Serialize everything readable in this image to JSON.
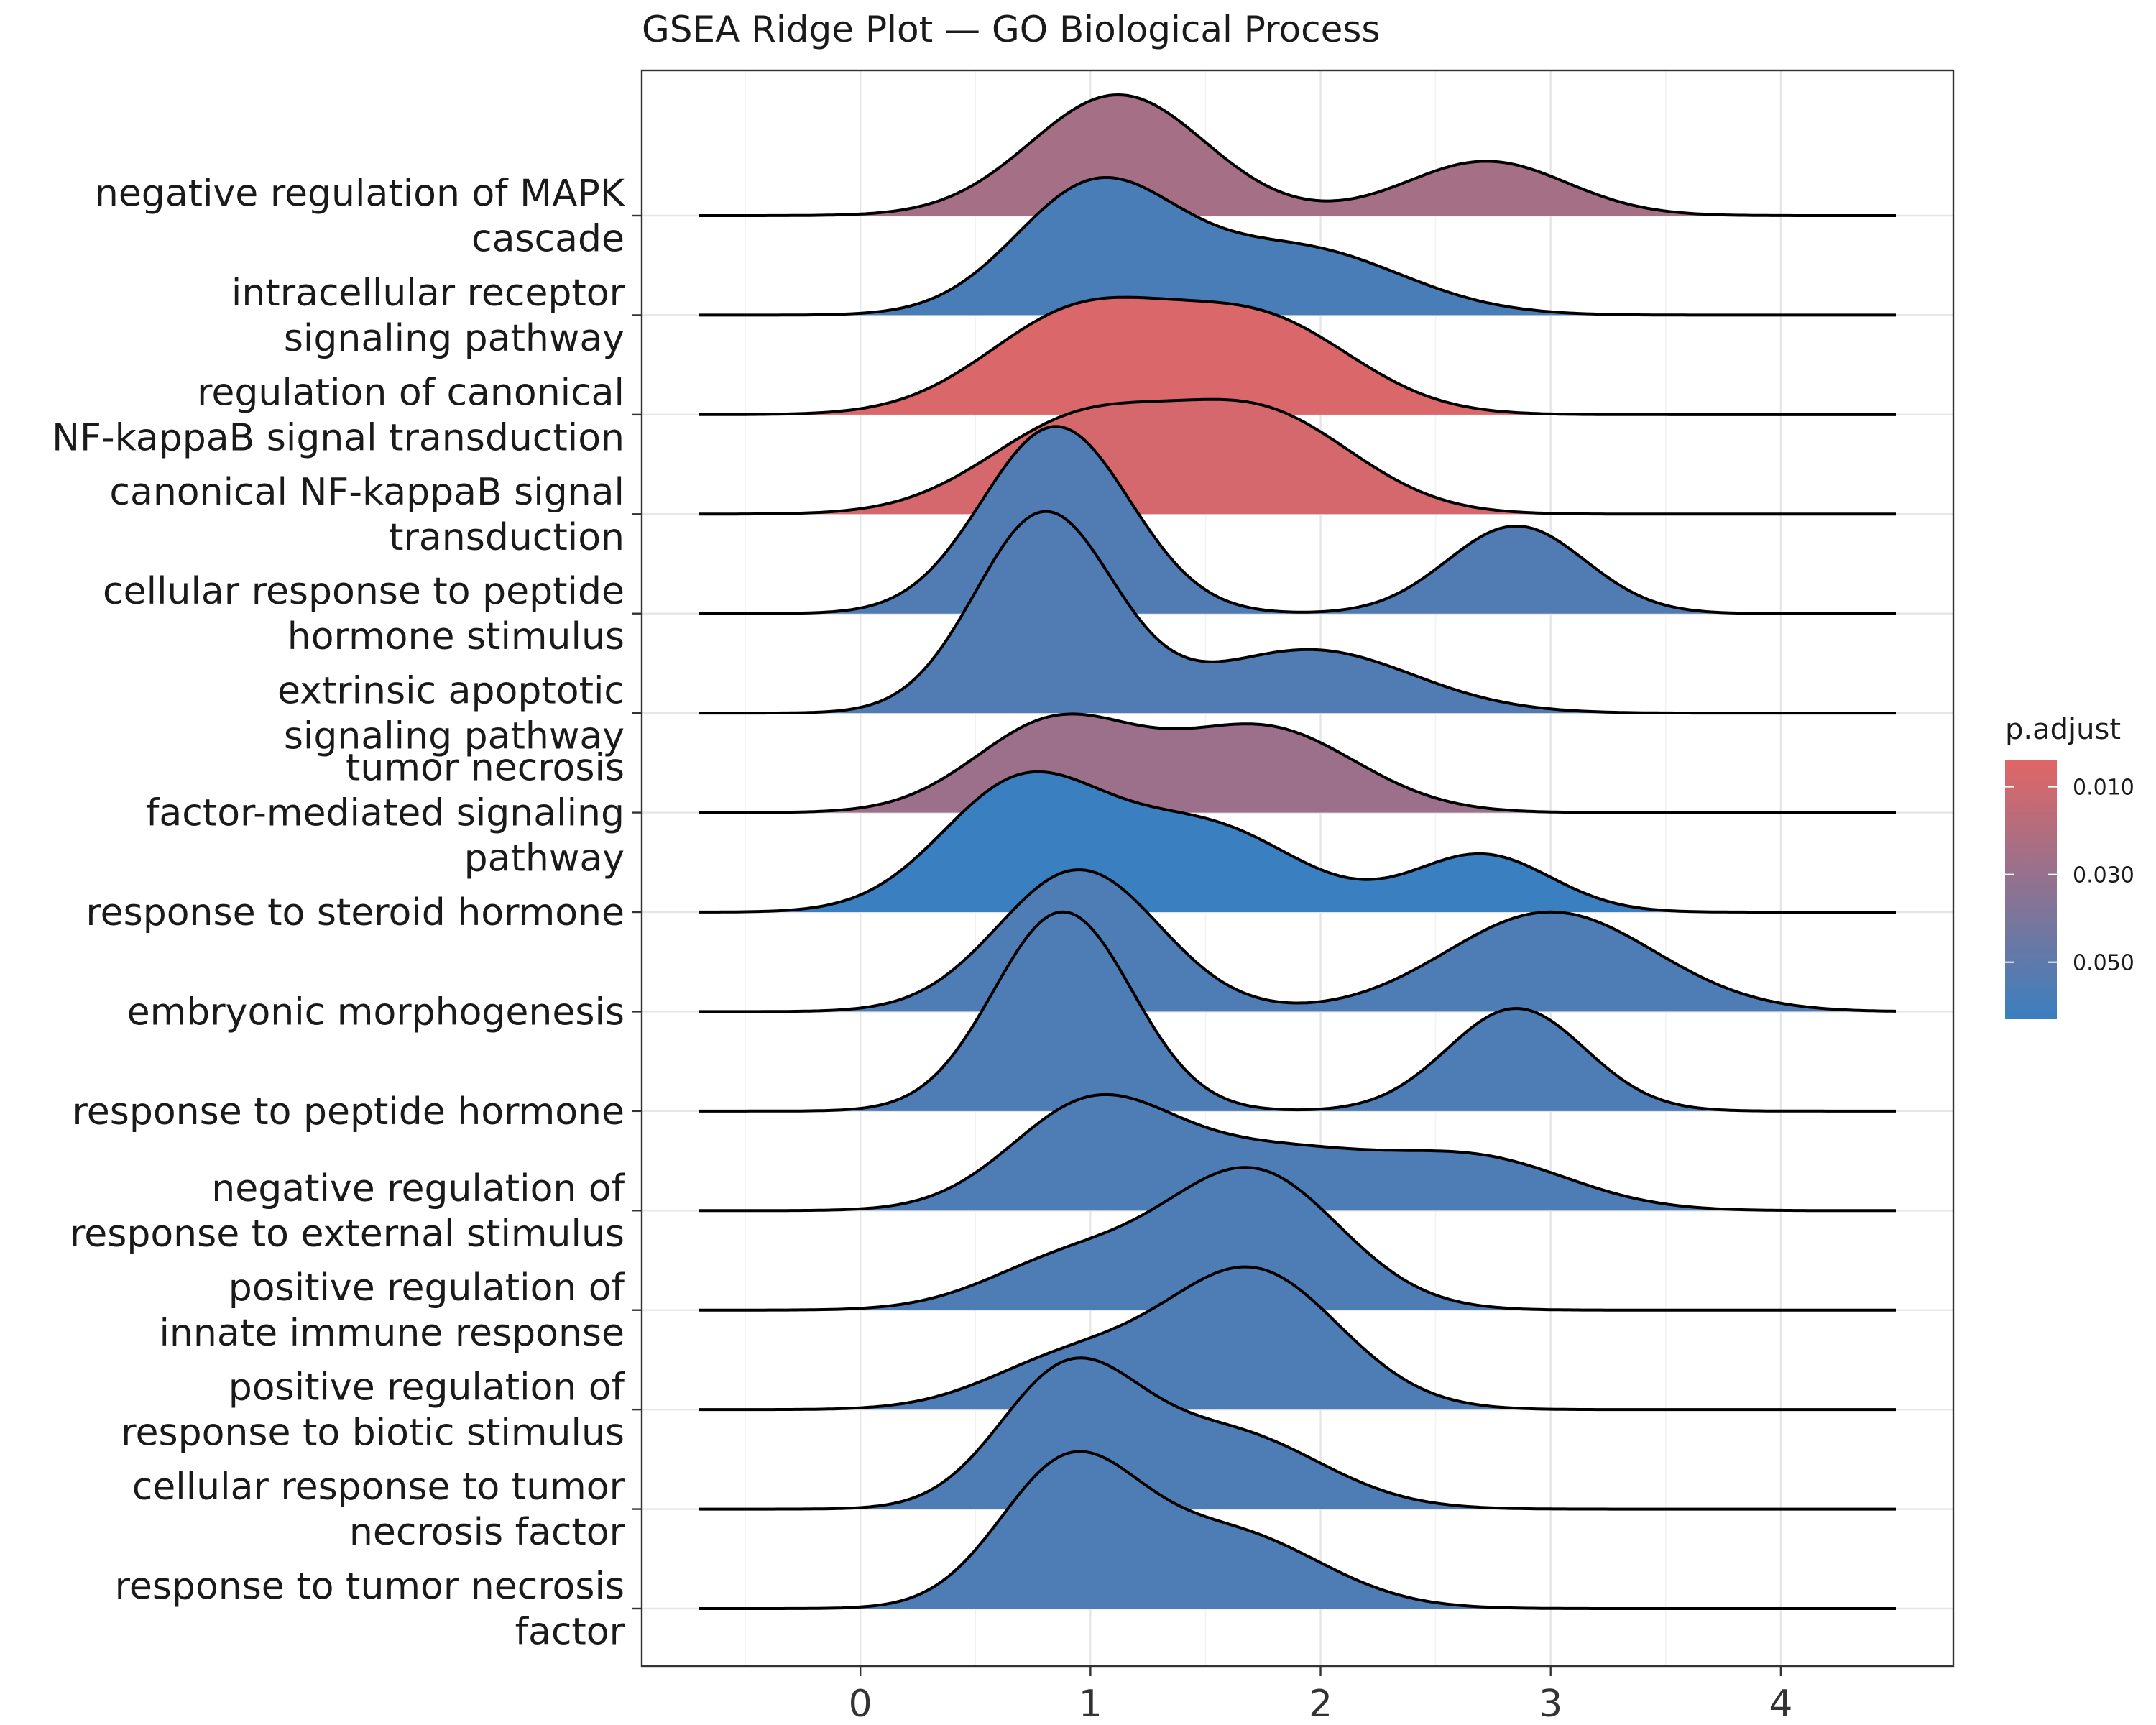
{
  "chart_data": {
    "type": "ridgeline",
    "title": "GSEA Ridge Plot — GO Biological Process",
    "xlabel": "",
    "ylabel": "",
    "xlim": [
      -0.95,
      4.75
    ],
    "x_ticks": [
      0,
      1,
      2,
      3,
      4
    ],
    "x_tick_labels": [
      "0",
      "1",
      "2",
      "3",
      "4"
    ],
    "x_domain": [
      -0.7,
      4.5
    ],
    "grid": true,
    "legend": {
      "title": "p.adjust",
      "position": "right",
      "range": [
        0.004,
        0.063
      ],
      "ticks": [
        0.01,
        0.03,
        0.05
      ],
      "tick_labels": [
        "0.010",
        "0.030",
        "0.050"
      ],
      "color_low_p": "#e06666",
      "color_high_p": "#3a7fbf"
    },
    "series": [
      {
        "label_lines": [
          "negative regulation of MAPK",
          "cascade"
        ],
        "p_adjust": 0.025,
        "components": [
          [
            0.4,
            1.12,
            0.38
          ],
          [
            0.18,
            2.72,
            0.35
          ]
        ]
      },
      {
        "label_lines": [
          "intracellular receptor",
          "signaling pathway"
        ],
        "p_adjust": 0.058,
        "components": [
          [
            0.42,
            1.02,
            0.35
          ],
          [
            0.22,
            1.9,
            0.45
          ]
        ]
      },
      {
        "label_lines": [
          "regulation of canonical",
          "NF-kappaB signal transduction"
        ],
        "p_adjust": 0.006,
        "components": [
          [
            0.33,
            0.95,
            0.4
          ],
          [
            0.3,
            1.75,
            0.4
          ]
        ]
      },
      {
        "label_lines": [
          "canonical NF-kappaB signal",
          "transduction"
        ],
        "p_adjust": 0.008,
        "components": [
          [
            0.3,
            0.95,
            0.4
          ],
          [
            0.32,
            1.75,
            0.4
          ]
        ]
      },
      {
        "label_lines": [
          "cellular response to peptide",
          "hormone stimulus"
        ],
        "p_adjust": 0.055,
        "components": [
          [
            0.62,
            0.85,
            0.32
          ],
          [
            0.29,
            2.85,
            0.3
          ]
        ]
      },
      {
        "label_lines": [
          "extrinsic apoptotic",
          "signaling pathway"
        ],
        "p_adjust": 0.055,
        "components": [
          [
            0.66,
            0.8,
            0.3
          ],
          [
            0.21,
            1.95,
            0.45
          ]
        ]
      },
      {
        "label_lines": [
          "tumor necrosis",
          "factor-mediated signaling",
          "pathway"
        ],
        "p_adjust": 0.028,
        "components": [
          [
            0.3,
            0.85,
            0.35
          ],
          [
            0.28,
            1.75,
            0.4
          ]
        ]
      },
      {
        "label_lines": [
          "response to steroid hormone"
        ],
        "p_adjust": 0.065,
        "components": [
          [
            0.42,
            0.7,
            0.35
          ],
          [
            0.28,
            1.5,
            0.4
          ],
          [
            0.19,
            2.7,
            0.3
          ]
        ]
      },
      {
        "label_lines": [
          "embryonic morphogenesis"
        ],
        "p_adjust": 0.056,
        "components": [
          [
            0.47,
            0.95,
            0.35
          ],
          [
            0.33,
            3.0,
            0.45
          ]
        ]
      },
      {
        "label_lines": [
          "response to peptide hormone"
        ],
        "p_adjust": 0.056,
        "components": [
          [
            0.66,
            0.88,
            0.3
          ],
          [
            0.34,
            2.85,
            0.3
          ]
        ]
      },
      {
        "label_lines": [
          "negative regulation of",
          "response to external stimulus"
        ],
        "p_adjust": 0.056,
        "components": [
          [
            0.34,
            1.0,
            0.35
          ],
          [
            0.19,
            1.8,
            0.45
          ],
          [
            0.16,
            2.7,
            0.4
          ]
        ]
      },
      {
        "label_lines": [
          "positive regulation of",
          "innate immune response"
        ],
        "p_adjust": 0.056,
        "components": [
          [
            0.16,
            0.9,
            0.35
          ],
          [
            0.46,
            1.7,
            0.38
          ]
        ]
      },
      {
        "label_lines": [
          "positive regulation of",
          "response to biotic stimulus"
        ],
        "p_adjust": 0.056,
        "components": [
          [
            0.16,
            0.9,
            0.35
          ],
          [
            0.46,
            1.7,
            0.38
          ]
        ]
      },
      {
        "label_lines": [
          "cellular response to tumor",
          "necrosis factor"
        ],
        "p_adjust": 0.056,
        "components": [
          [
            0.44,
            0.9,
            0.3
          ],
          [
            0.25,
            1.6,
            0.4
          ]
        ]
      },
      {
        "label_lines": [
          "response to tumor necrosis",
          "factor"
        ],
        "p_adjust": 0.056,
        "components": [
          [
            0.46,
            0.9,
            0.3
          ],
          [
            0.25,
            1.6,
            0.4
          ]
        ]
      }
    ]
  }
}
